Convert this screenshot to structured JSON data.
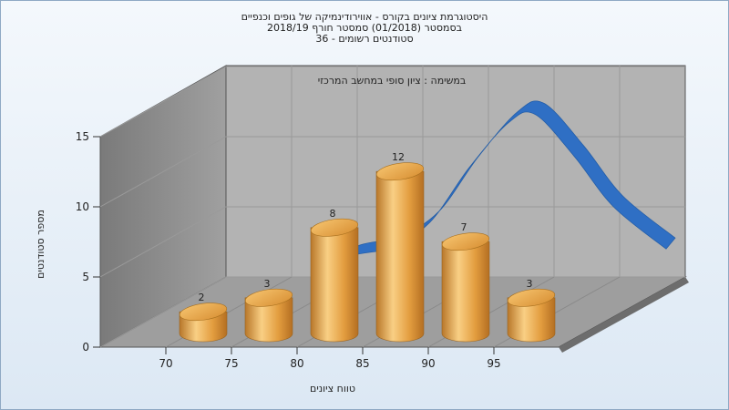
{
  "chart_data": {
    "type": "bar",
    "title_lines": [
      "היסטוגרמת ציונים בקורס - אווירודינמיקה של גופים וכנפיים",
      "בסמסטר  (01/2018)  סמסטר חורף 2018/19",
      "סטודנטים רשומים - 36"
    ],
    "subtitle": "במשימה : ציון סופי במחשב המרכזי",
    "xlabel": "טווח ציונים",
    "ylabel": "מספר סטודנטים",
    "x_ticks": [
      "70",
      "75",
      "80",
      "85",
      "90",
      "95"
    ],
    "y_ticks": [
      "0",
      "5",
      "10",
      "15"
    ],
    "ylim": [
      0,
      15
    ],
    "bars": [
      {
        "x": 72.5,
        "value": 2
      },
      {
        "x": 77.5,
        "value": 3
      },
      {
        "x": 82.5,
        "value": 8
      },
      {
        "x": 87.5,
        "value": 12
      },
      {
        "x": 92.5,
        "value": 7
      },
      {
        "x": 97.5,
        "value": 3
      }
    ],
    "curve": [
      {
        "x": 73,
        "y": 0.6
      },
      {
        "x": 76,
        "y": 1.9
      },
      {
        "x": 79,
        "y": 2.5
      },
      {
        "x": 82,
        "y": 4.3
      },
      {
        "x": 85,
        "y": 8.2
      },
      {
        "x": 88,
        "y": 11.4
      },
      {
        "x": 90,
        "y": 12.0
      },
      {
        "x": 93,
        "y": 9.0
      },
      {
        "x": 96,
        "y": 5.4
      },
      {
        "x": 100,
        "y": 2.4
      }
    ],
    "grid": true,
    "colors": {
      "bar": "#e0a24a",
      "curve": "#2f6fc4",
      "back_wall": "#b3b3b3",
      "side_wall": "#8a8a8a",
      "floor": "#9e9e9e"
    }
  }
}
